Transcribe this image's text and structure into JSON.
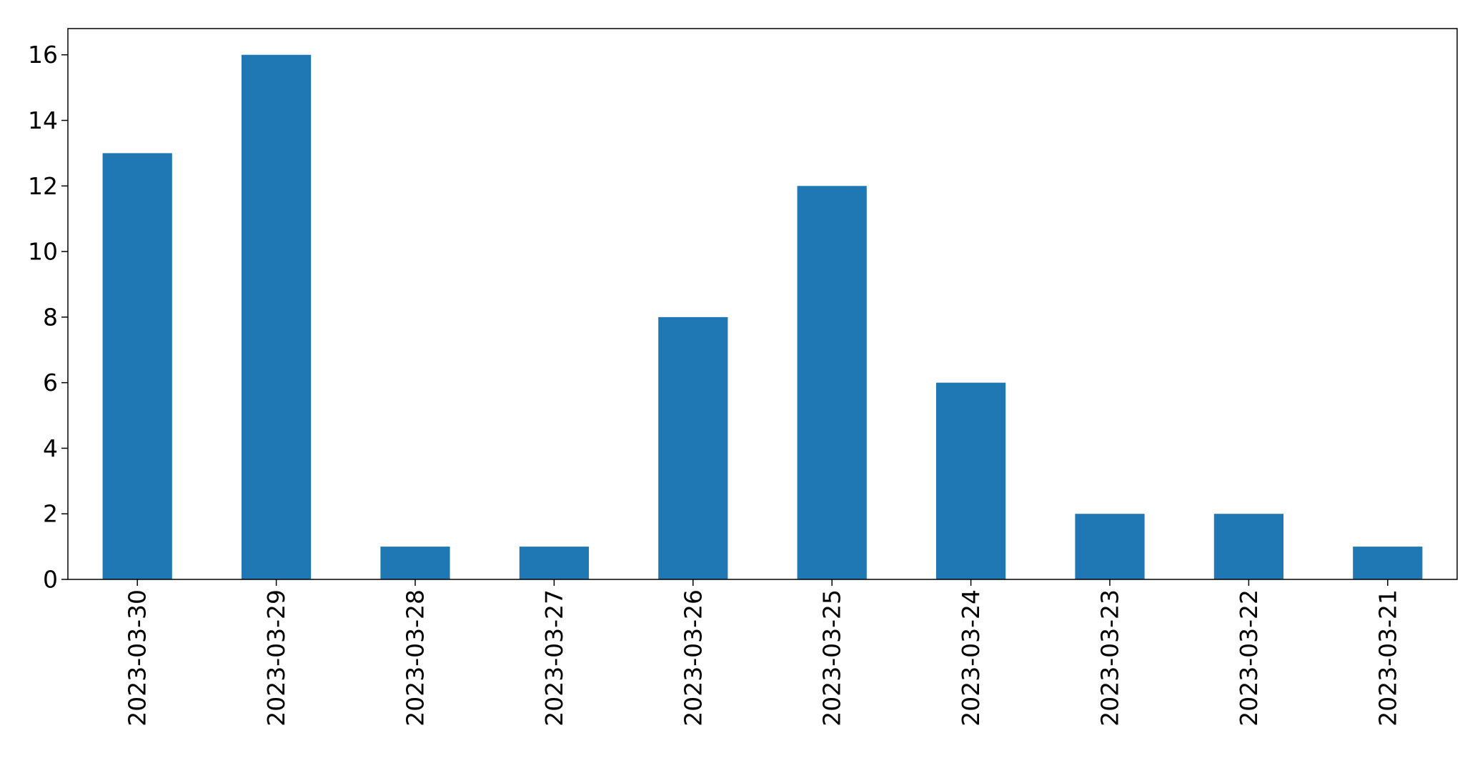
{
  "chart_data": {
    "type": "bar",
    "title": "",
    "xlabel": "",
    "ylabel": "",
    "categories": [
      "2023-03-30",
      "2023-03-29",
      "2023-03-28",
      "2023-03-27",
      "2023-03-26",
      "2023-03-25",
      "2023-03-24",
      "2023-03-23",
      "2023-03-22",
      "2023-03-21"
    ],
    "values": [
      13,
      16,
      1,
      1,
      8,
      12,
      6,
      2,
      2,
      1
    ],
    "ylim": [
      0,
      16.8
    ],
    "yticks": [
      0,
      2,
      4,
      6,
      8,
      10,
      12,
      14,
      16
    ],
    "grid": false,
    "legend": "none",
    "bar_color": "#1f77b4",
    "x_tick_rotation": "vertical"
  }
}
